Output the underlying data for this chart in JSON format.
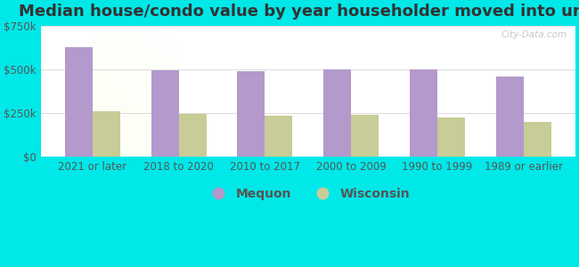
{
  "title": "Median house/condo value by year householder moved into unit",
  "categories": [
    "2021 or later",
    "2018 to 2020",
    "2010 to 2017",
    "2000 to 2009",
    "1990 to 1999",
    "1989 or earlier"
  ],
  "mequon_values": [
    630000,
    497000,
    492000,
    500000,
    498000,
    460000
  ],
  "wisconsin_values": [
    262000,
    242000,
    232000,
    238000,
    222000,
    198000
  ],
  "mequon_color": "#b399cc",
  "wisconsin_color": "#c8cc96",
  "background_color": "#00e8e8",
  "ylim": [
    0,
    750000
  ],
  "yticks": [
    0,
    250000,
    500000,
    750000
  ],
  "ytick_labels": [
    "$0",
    "$250k",
    "$500k",
    "$750k"
  ],
  "bar_width": 0.32,
  "title_fontsize": 13,
  "tick_fontsize": 8.5,
  "legend_fontsize": 10,
  "watermark": "City-Data.com"
}
